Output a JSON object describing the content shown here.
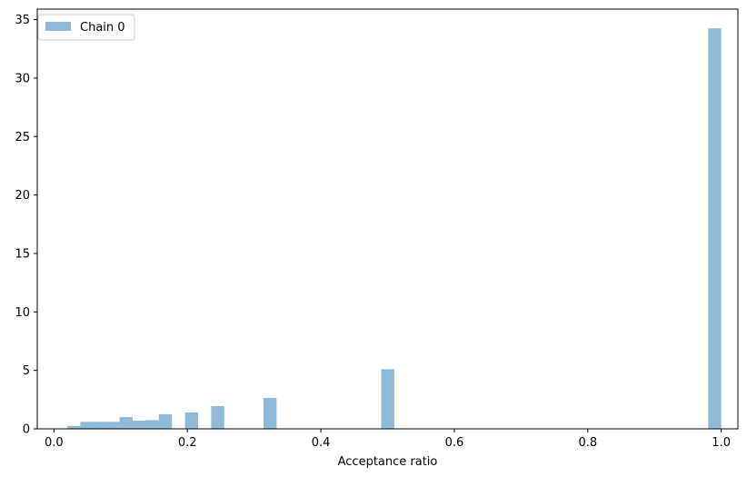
{
  "chart_data": {
    "type": "bar",
    "histogram": true,
    "title": "",
    "xlabel": "Acceptance ratio",
    "ylabel": "",
    "xlim": [
      -0.025,
      1.025
    ],
    "ylim": [
      0,
      35.9
    ],
    "xticks": [
      0.0,
      0.2,
      0.4,
      0.6,
      0.8,
      1.0
    ],
    "xtick_labels": [
      "0.0",
      "0.2",
      "0.4",
      "0.6",
      "0.8",
      "1.0"
    ],
    "yticks": [
      0,
      5,
      10,
      15,
      20,
      25,
      30,
      35
    ],
    "ytick_labels": [
      "0",
      "5",
      "10",
      "15",
      "20",
      "25",
      "30",
      "35"
    ],
    "grid": false,
    "legend_position": "top-left",
    "series": [
      {
        "name": "Chain 0",
        "color": "#1f77b4",
        "alpha": 0.5,
        "bins": [
          {
            "x0": 0.02,
            "x1": 0.0396,
            "value": 0.25
          },
          {
            "x0": 0.0396,
            "x1": 0.0592,
            "value": 0.6
          },
          {
            "x0": 0.0592,
            "x1": 0.0788,
            "value": 0.6
          },
          {
            "x0": 0.0788,
            "x1": 0.0984,
            "value": 0.6
          },
          {
            "x0": 0.0984,
            "x1": 0.118,
            "value": 1.0
          },
          {
            "x0": 0.118,
            "x1": 0.1376,
            "value": 0.7
          },
          {
            "x0": 0.1376,
            "x1": 0.1572,
            "value": 0.75
          },
          {
            "x0": 0.1572,
            "x1": 0.1768,
            "value": 1.25
          },
          {
            "x0": 0.1964,
            "x1": 0.216,
            "value": 1.4
          },
          {
            "x0": 0.2356,
            "x1": 0.2552,
            "value": 1.95
          },
          {
            "x0": 0.314,
            "x1": 0.3336,
            "value": 2.65
          },
          {
            "x0": 0.4904,
            "x1": 0.51,
            "value": 5.1
          },
          {
            "x0": 0.9804,
            "x1": 1.0,
            "value": 34.25
          }
        ]
      }
    ]
  }
}
